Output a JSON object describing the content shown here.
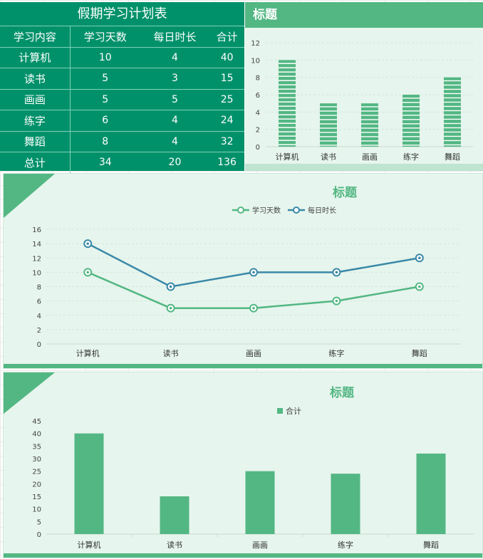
{
  "table": {
    "title": "假期学习计划表",
    "headers": [
      "学习内容",
      "学习天数",
      "每日时长",
      "合计"
    ],
    "rows": [
      [
        "计算机",
        "10",
        "4",
        "40"
      ],
      [
        "读书",
        "5",
        "3",
        "15"
      ],
      [
        "画画",
        "5",
        "5",
        "25"
      ],
      [
        "练字",
        "6",
        "4",
        "24"
      ],
      [
        "舞蹈",
        "8",
        "4",
        "32"
      ],
      [
        "总计",
        "34",
        "20",
        "136"
      ]
    ]
  },
  "colors": {
    "accent": "#53b783",
    "table_bg": "#00916a",
    "line2": "#3a88a8",
    "panel_bg": "#e6f5ed"
  },
  "chart_data": [
    {
      "type": "bar",
      "title": "标题",
      "categories": [
        "计算机",
        "读书",
        "画画",
        "练字",
        "舞蹈"
      ],
      "series": [
        {
          "values": [
            10,
            5,
            5,
            6,
            8
          ]
        }
      ],
      "ylim": [
        0,
        12
      ],
      "yticks": [
        "0",
        "2",
        "4",
        "6",
        "8",
        "10",
        "12"
      ],
      "grid": true
    },
    {
      "type": "line",
      "title": "标题",
      "categories": [
        "计算机",
        "读书",
        "画画",
        "练字",
        "舞蹈"
      ],
      "series": [
        {
          "name": "学习天数",
          "values": [
            10,
            5,
            5,
            6,
            8
          ]
        },
        {
          "name": "每日时长",
          "values": [
            14,
            8,
            10,
            10,
            12
          ]
        }
      ],
      "ylim": [
        0,
        16
      ],
      "yticks": [
        "0",
        "2",
        "4",
        "6",
        "8",
        "10",
        "12",
        "14",
        "16"
      ],
      "legend": "top",
      "grid": true
    },
    {
      "type": "bar",
      "title": "标题",
      "categories": [
        "计算机",
        "读书",
        "画画",
        "练字",
        "舞蹈"
      ],
      "series": [
        {
          "name": "合计",
          "values": [
            40,
            15,
            25,
            24,
            32
          ]
        }
      ],
      "ylim": [
        0,
        45
      ],
      "yticks": [
        "0",
        "5",
        "10",
        "15",
        "20",
        "25",
        "30",
        "35",
        "40",
        "45"
      ],
      "legend": "top"
    }
  ]
}
